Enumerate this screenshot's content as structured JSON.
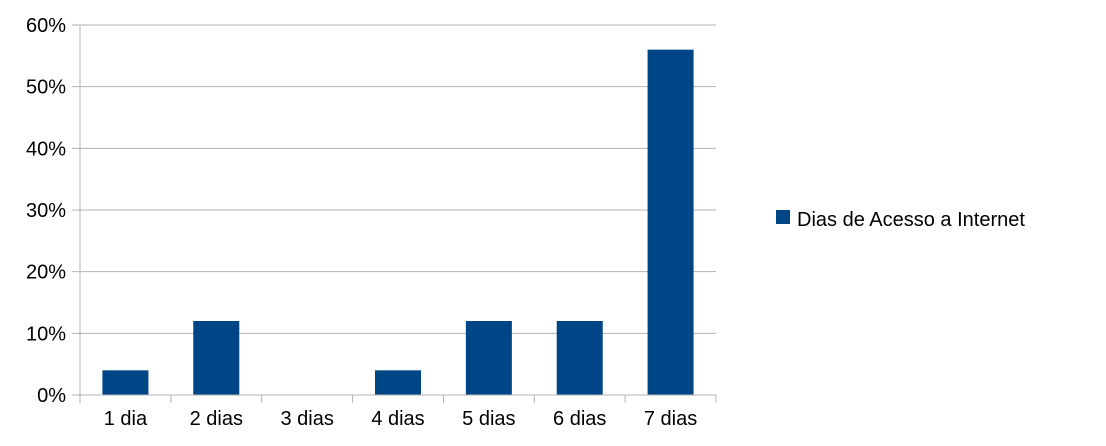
{
  "chart_data": {
    "type": "bar",
    "categories": [
      "1 dia",
      "2 dias",
      "3 dias",
      "4 dias",
      "5 dias",
      "6 dias",
      "7 dias"
    ],
    "series": [
      {
        "name": "Dias de Acesso a Internet",
        "values": [
          4,
          12,
          0,
          4,
          12,
          12,
          56
        ],
        "color": "#004586"
      }
    ],
    "yticks": [
      "0%",
      "10%",
      "20%",
      "30%",
      "40%",
      "50%",
      "60%"
    ],
    "ylim": [
      0,
      60
    ],
    "grid": true,
    "legend": "right"
  }
}
